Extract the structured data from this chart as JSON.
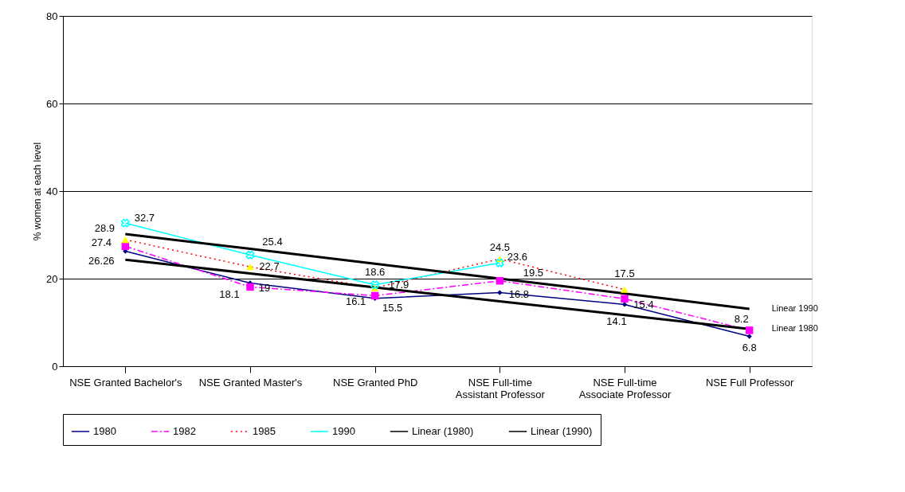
{
  "chart_data": {
    "type": "line",
    "ylabel": "% women at each level",
    "categories": [
      "NSE Granted Bachelor's",
      "NSE Granted Master's",
      "NSE Granted PhD",
      "NSE Full-time Assistant Professor",
      "NSE Full-time Associate Professor",
      "NSE Full Professor"
    ],
    "series": [
      {
        "name": "1980",
        "color": "#000080",
        "marker": "diamond",
        "line_style": "solid",
        "values": [
          26.26,
          19,
          15.5,
          16.8,
          14.1,
          6.8
        ],
        "value_labels": [
          "26.26",
          "19",
          "15.5",
          "16.8",
          "14.1",
          "6.8"
        ]
      },
      {
        "name": "1982",
        "color": "#ff00ff",
        "marker": "square",
        "line_style": "dashdot",
        "values": [
          27.4,
          18.1,
          16.1,
          19.5,
          15.4,
          8.2
        ],
        "value_labels": [
          "27.4",
          "18.1",
          "16.1",
          "19.5",
          "15.4",
          "8.2"
        ]
      },
      {
        "name": "1985",
        "color": "#ff0000",
        "colors": [
          "#ffff00",
          "#ffff00",
          "#ffff00",
          "#ffff00",
          "#ffff00",
          null
        ],
        "marker": "triangle",
        "line_style": "dotted",
        "values": [
          28.9,
          22.7,
          17.9,
          24.5,
          17.5,
          null
        ],
        "value_labels": [
          "28.9",
          "22.7",
          "17.9",
          "24.5",
          "17.5",
          null
        ]
      },
      {
        "name": "1990",
        "color": "#00ffff",
        "marker": "cross",
        "line_style": "solid",
        "values": [
          32.7,
          25.4,
          18.6,
          23.6,
          null,
          null
        ],
        "value_labels": [
          "32.7",
          "25.4",
          "18.6",
          "23.6",
          null,
          null
        ]
      },
      {
        "name": "Linear (1980)",
        "type": "line",
        "color": "#000000",
        "marker": "none",
        "line_style": "solid",
        "values": [
          24.3,
          21.2,
          18.0,
          14.8,
          11.7,
          8.5
        ]
      },
      {
        "name": "Linear (1990)",
        "type": "line",
        "color": "#000000",
        "marker": "none",
        "line_style": "solid",
        "values": [
          30.2,
          26.8,
          23.4,
          20.0,
          16.6,
          13.1
        ]
      }
    ],
    "annotations": [
      "Linear 1990",
      "Linear 1980"
    ],
    "ylim": [
      0,
      80
    ],
    "yticks": [
      0,
      20,
      40,
      60,
      80
    ],
    "grid": "y",
    "legend": "bottom"
  }
}
